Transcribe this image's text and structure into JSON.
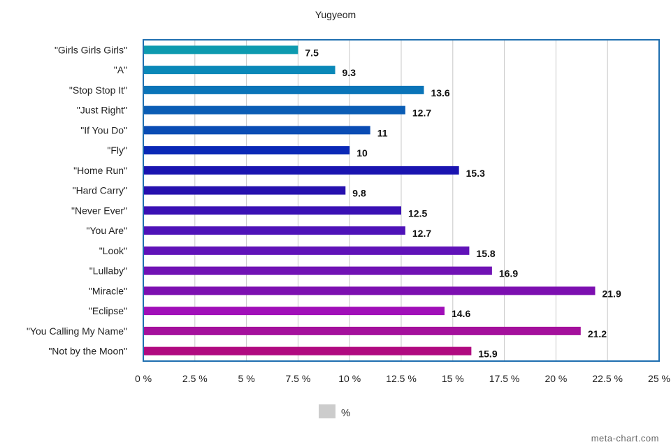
{
  "chart_data": {
    "type": "bar",
    "orientation": "horizontal",
    "title": "Yugyeom",
    "categories": [
      "\"Girls Girls Girls\"",
      "\"A\"",
      "\"Stop Stop It\"",
      "\"Just Right\"",
      "\"If You Do\"",
      "\"Fly\"",
      "\"Home Run\"",
      "\"Hard Carry\"",
      "\"Never Ever\"",
      "\"You Are\"",
      "\"Look\"",
      "\"Lullaby\"",
      "\"Miracle\"",
      "\"Eclipse\"",
      "\"You Calling My Name\"",
      "\"Not by the Moon\""
    ],
    "series": [
      {
        "name": "%",
        "values": [
          7.5,
          9.3,
          13.6,
          12.7,
          11,
          10,
          15.3,
          9.8,
          12.5,
          12.7,
          15.8,
          16.9,
          21.9,
          14.6,
          21.2,
          15.9
        ],
        "value_labels": [
          "7.5",
          "9.3",
          "13.6",
          "12.7",
          "11",
          "10",
          "15.3",
          "9.8",
          "12.5",
          "12.7",
          "15.8",
          "16.9",
          "21.9",
          "14.6",
          "21.2",
          "15.9"
        ]
      }
    ],
    "bar_colors": [
      "#0d9aaf",
      "#0a88b8",
      "#0a74b8",
      "#0b5db5",
      "#0a4cb4",
      "#0a28b6",
      "#1a14b0",
      "#2610ae",
      "#3a10b4",
      "#4e12b8",
      "#6012b8",
      "#7012b4",
      "#7c0fb0",
      "#a00fb8",
      "#a4109c",
      "#b00a80"
    ],
    "x_ticks": [
      "0 %",
      "2.5 %",
      "5 %",
      "7.5 %",
      "10 %",
      "12.5 %",
      "15 %",
      "17.5 %",
      "20 %",
      "22.5 %",
      "25 %"
    ],
    "xlim": [
      0,
      25
    ],
    "grid": true,
    "legend": {
      "position": "bottom",
      "label": "%",
      "swatch_color": "#cccccc"
    },
    "plot_border_color": "#1f6fb0",
    "gridline_color": "#c8c8c8"
  },
  "credit": "meta-chart.com"
}
